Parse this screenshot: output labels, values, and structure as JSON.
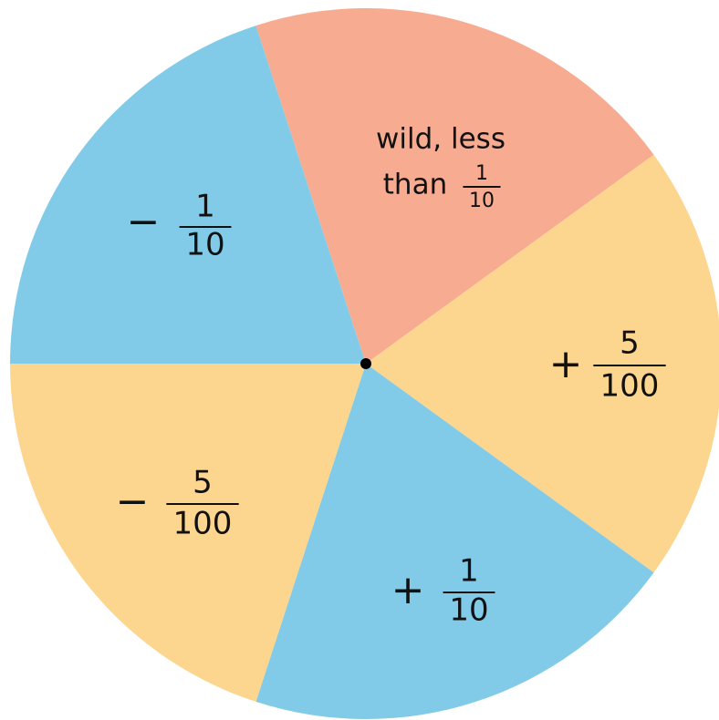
{
  "sectors": [
    {
      "color": "#82cbe8",
      "sign": "−",
      "numerator": "1",
      "denominator": "10"
    },
    {
      "color": "#f7ac92",
      "line1": "wild, less",
      "line2": "than",
      "numerator": "1",
      "denominator": "10"
    },
    {
      "color": "#fcd58e",
      "sign": "+",
      "numerator": "5",
      "denominator": "100"
    },
    {
      "color": "#82cbe8",
      "sign": "+",
      "numerator": "1",
      "denominator": "10"
    },
    {
      "color": "#fcd58e",
      "sign": "−",
      "numerator": "5",
      "denominator": "100"
    }
  ]
}
